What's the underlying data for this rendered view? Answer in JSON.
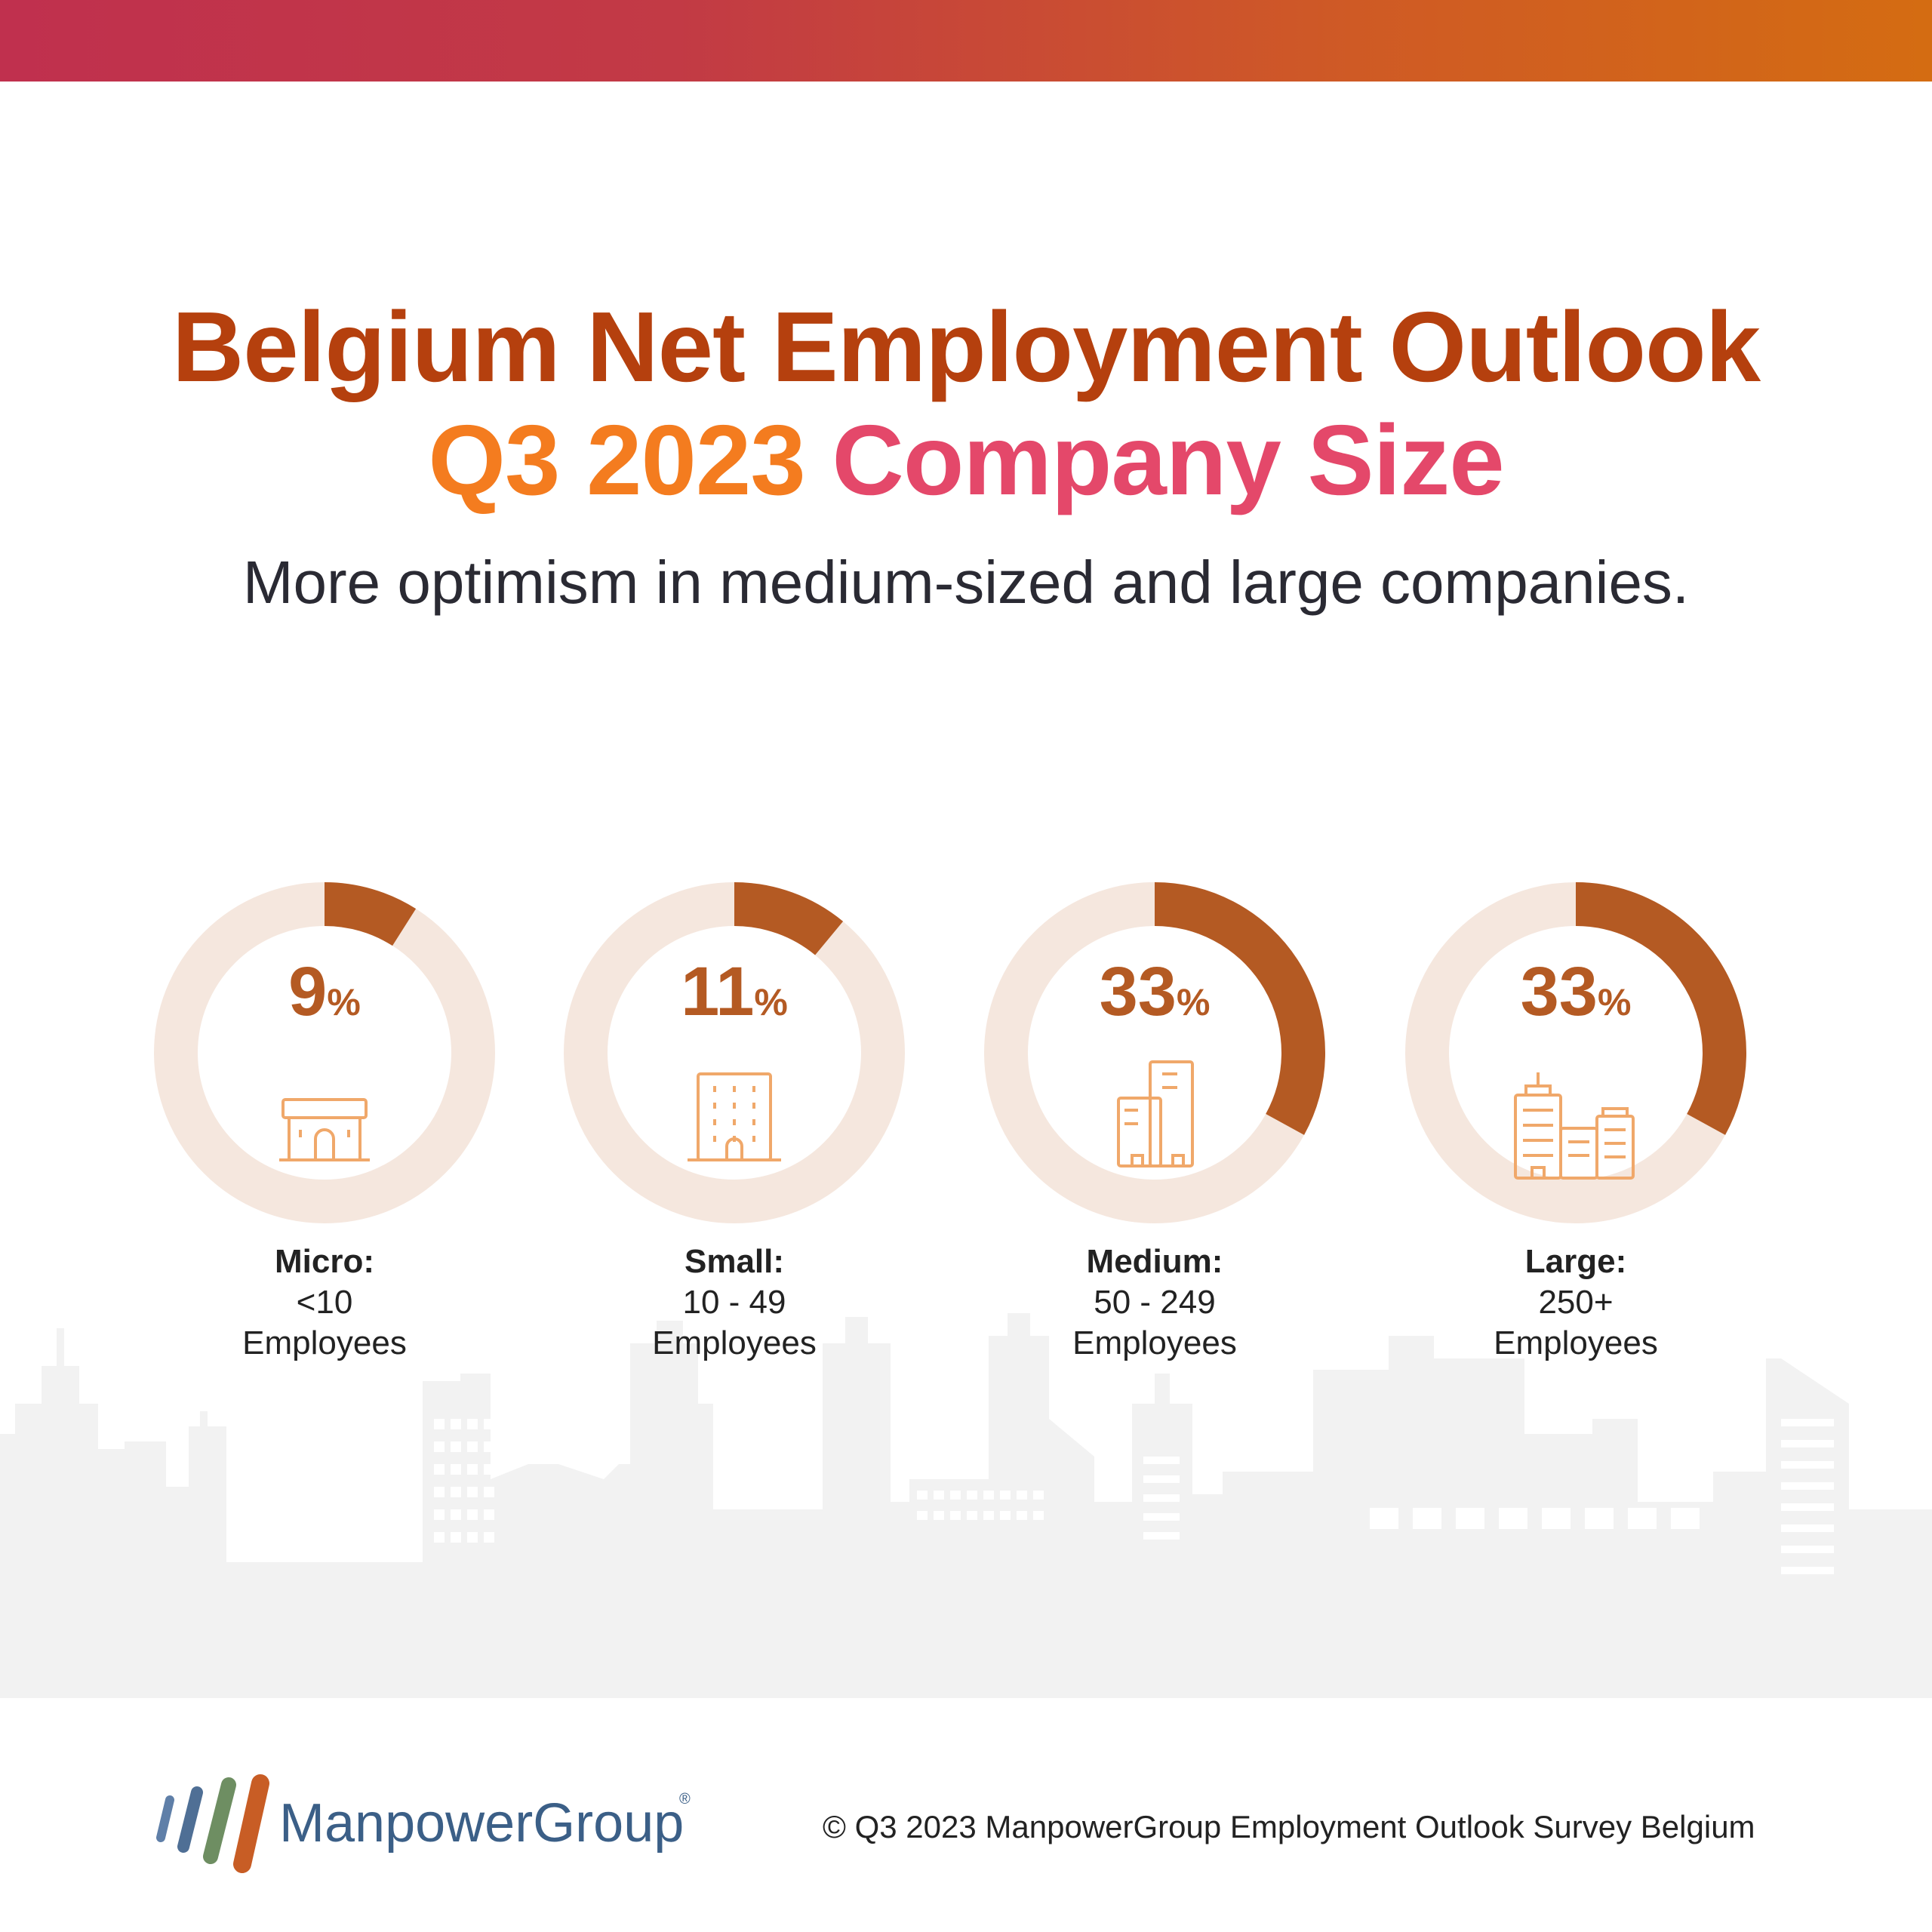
{
  "header": {
    "title_line1": "Belgium Net Employment Outlook",
    "title_line2_a": "Q3 2023",
    "title_line2_b": "Company Size",
    "subtitle": "More optimism in medium-sized and large companies."
  },
  "colors": {
    "arc": "#b45a23",
    "track": "#f5e7de",
    "value_text": "#b45a23",
    "icon": "#f0a86a",
    "skyline": "#f2f2f2"
  },
  "chart_data": {
    "type": "pie",
    "unit": "%",
    "categories": [
      {
        "name": "Micro:",
        "range": "<10",
        "unit": "Employees",
        "value": 9,
        "icon": "small-shop-icon"
      },
      {
        "name": "Small:",
        "range": "10 - 49",
        "unit": "Employees",
        "value": 11,
        "icon": "office-building-icon"
      },
      {
        "name": "Medium:",
        "range": "50 - 249",
        "unit": "Employees",
        "value": 33,
        "icon": "twin-towers-icon"
      },
      {
        "name": "Large:",
        "range": "250+",
        "unit": "Employees",
        "value": 33,
        "icon": "city-buildings-icon"
      }
    ]
  },
  "footer": {
    "logo_text": "ManpowerGroup",
    "logo_mark": "®",
    "copyright": "© Q3 2023 ManpowerGroup Employment Outlook Survey Belgium"
  }
}
